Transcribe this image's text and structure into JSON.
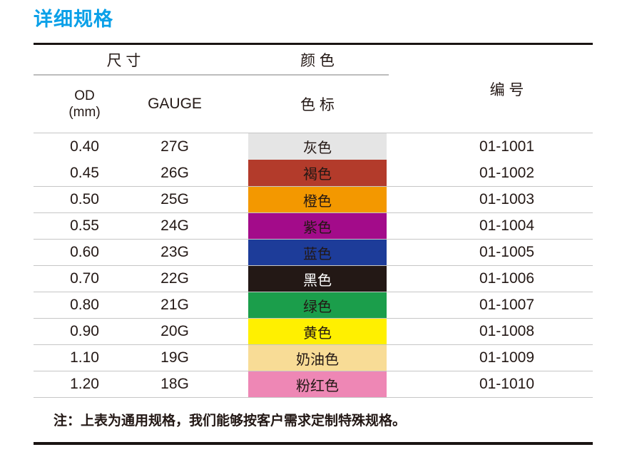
{
  "title": "详细规格",
  "accent_color": "#0aa0e8",
  "table": {
    "header": {
      "size_group": "尺 寸",
      "color_group": "颜 色",
      "od_line1": "OD",
      "od_line2": "(mm)",
      "gauge": "GAUGE",
      "color_label": "色 标",
      "code": "编 号"
    },
    "rows": [
      {
        "od": "0.40",
        "gauge": "27G",
        "color_name": "灰色",
        "color_hex": "#e5e5e5",
        "text_color": "#231815",
        "code": "01-1001",
        "separator_above": false
      },
      {
        "od": "0.45",
        "gauge": "26G",
        "color_name": "褐色",
        "color_hex": "#b33b2b",
        "text_color": "#231815",
        "code": "01-1002",
        "separator_above": false
      },
      {
        "od": "0.50",
        "gauge": "25G",
        "color_name": "橙色",
        "color_hex": "#f39800",
        "text_color": "#231815",
        "code": "01-1003",
        "separator_above": true
      },
      {
        "od": "0.55",
        "gauge": "24G",
        "color_name": "紫色",
        "color_hex": "#a30b8a",
        "text_color": "#231815",
        "code": "01-1004",
        "separator_above": true
      },
      {
        "od": "0.60",
        "gauge": "23G",
        "color_name": "蓝色",
        "color_hex": "#1d3c99",
        "text_color": "#231815",
        "code": "01-1005",
        "separator_above": true
      },
      {
        "od": "0.70",
        "gauge": "22G",
        "color_name": "黑色",
        "color_hex": "#231815",
        "text_color": "#ffffff",
        "code": "01-1006",
        "separator_above": true
      },
      {
        "od": "0.80",
        "gauge": "21G",
        "color_name": "绿色",
        "color_hex": "#1b9e4b",
        "text_color": "#231815",
        "code": "01-1007",
        "separator_above": true
      },
      {
        "od": "0.90",
        "gauge": "20G",
        "color_name": "黄色",
        "color_hex": "#fff000",
        "text_color": "#231815",
        "code": "01-1008",
        "separator_above": true
      },
      {
        "od": "1.10",
        "gauge": "19G",
        "color_name": "奶油色",
        "color_hex": "#f8dc96",
        "text_color": "#231815",
        "code": "01-1009",
        "separator_above": true
      },
      {
        "od": "1.20",
        "gauge": "18G",
        "color_name": "粉红色",
        "color_hex": "#ee87b5",
        "text_color": "#231815",
        "code": "01-1010",
        "separator_above": true
      }
    ]
  },
  "note": "注：上表为通用规格，我们能够按客户需求定制特殊规格。"
}
